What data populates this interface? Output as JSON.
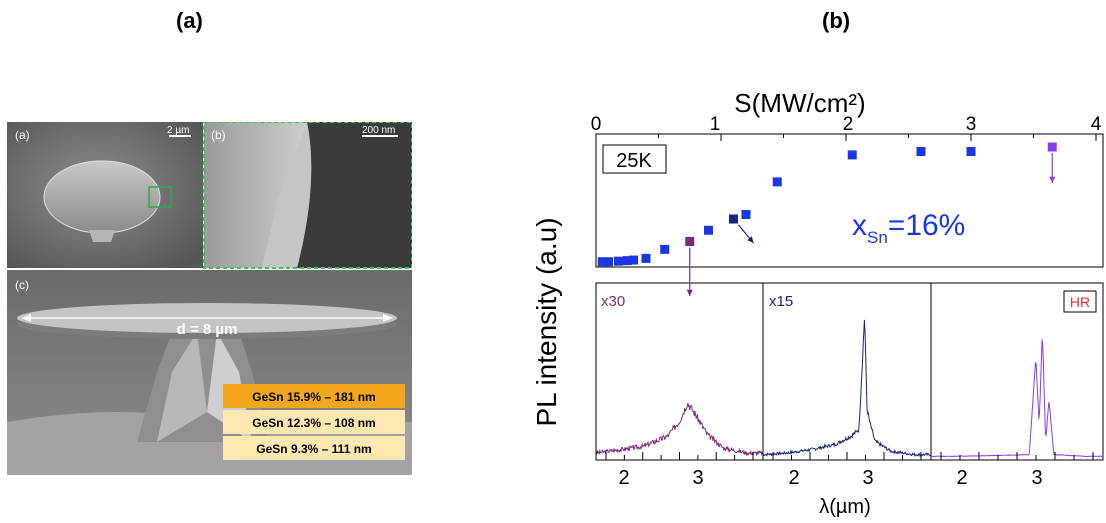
{
  "figure": {
    "panel_a_label": "(a)",
    "panel_b_label": "(b)"
  },
  "sem": {
    "inset_a_label": "(a)",
    "inset_b_label": "(b)",
    "inset_c_label": "(c)",
    "scale_a": "2 µm",
    "scale_b": "200 nm",
    "diameter_label": "d = 8 µm",
    "layers": [
      {
        "label": "GeSn 15.9% – 181 nm",
        "color": "#f2a71c"
      },
      {
        "label": "GeSn 12.3% – 108 nm",
        "color": "#fde8b2"
      },
      {
        "label": "GeSn 9.3% – 111 nm",
        "color": "#fde8b2"
      }
    ]
  },
  "plot": {
    "top_axis_title": "S(MW/cm²)",
    "left_axis_title": "PL intensity (a.u)",
    "bottom_axis_title": "λ(µm)",
    "temperature_label": "25K",
    "xsn_symbol": "x",
    "xsn_sub": "Sn",
    "xsn_value": "=16%",
    "subpanel_labels": [
      "x30",
      "x15",
      "HR"
    ],
    "bottom_tick_labels": [
      "2",
      "3",
      "2",
      "3",
      "2",
      "3"
    ],
    "top_tick_labels": [
      "0",
      "1",
      "2",
      "3",
      "4"
    ],
    "colors": {
      "blue": "#1a37e6",
      "purple": "#7d2a7a",
      "navy": "#1a237e",
      "violet": "#8a3cf0",
      "hr_red": "#e83030"
    }
  },
  "chart_data": [
    {
      "type": "scatter",
      "xlabel": "S(MW/cm²)",
      "ylabel": "PL intensity (a.u)",
      "xlim": [
        0,
        4
      ],
      "annotations": [
        "25K",
        "xSn=16%"
      ],
      "series": [
        {
          "x": [
            0.05,
            0.1,
            0.18,
            0.25,
            0.3,
            0.4,
            0.55,
            0.75,
            0.9,
            1.1,
            1.2,
            1.45,
            2.05,
            2.6,
            3.0,
            3.65
          ],
          "y": [
            0.02,
            0.02,
            0.025,
            0.03,
            0.035,
            0.05,
            0.13,
            0.2,
            0.3,
            0.4,
            0.44,
            0.73,
            0.97,
            1.0,
            1.0,
            1.04
          ]
        }
      ]
    },
    {
      "type": "line",
      "xlabel": "λ(µm)",
      "ylabel": "PL intensity (a.u)",
      "annotations": [
        "x30",
        "x15",
        "HR"
      ],
      "series": [
        {
          "x": [
            1.7,
            2.0,
            2.3,
            2.6,
            2.75,
            2.85,
            2.95,
            3.1,
            3.3,
            3.6
          ],
          "y": [
            0.03,
            0.05,
            0.07,
            0.13,
            0.22,
            0.33,
            0.26,
            0.14,
            0.06,
            0.03
          ]
        },
        {
          "x": [
            1.7,
            2.0,
            2.3,
            2.6,
            2.8,
            2.9,
            2.97,
            3.0,
            3.03,
            3.1,
            3.3,
            3.6
          ],
          "y": [
            0.02,
            0.03,
            0.05,
            0.08,
            0.13,
            0.17,
            0.85,
            0.3,
            0.22,
            0.1,
            0.04,
            0.02
          ]
        },
        {
          "x": [
            1.7,
            2.0,
            2.5,
            2.9,
            2.98,
            3.02,
            3.06,
            3.1,
            3.14,
            3.2,
            3.6
          ],
          "y": [
            0.01,
            0.01,
            0.015,
            0.02,
            0.6,
            0.2,
            0.75,
            0.1,
            0.35,
            0.02,
            0.01
          ]
        }
      ]
    }
  ]
}
